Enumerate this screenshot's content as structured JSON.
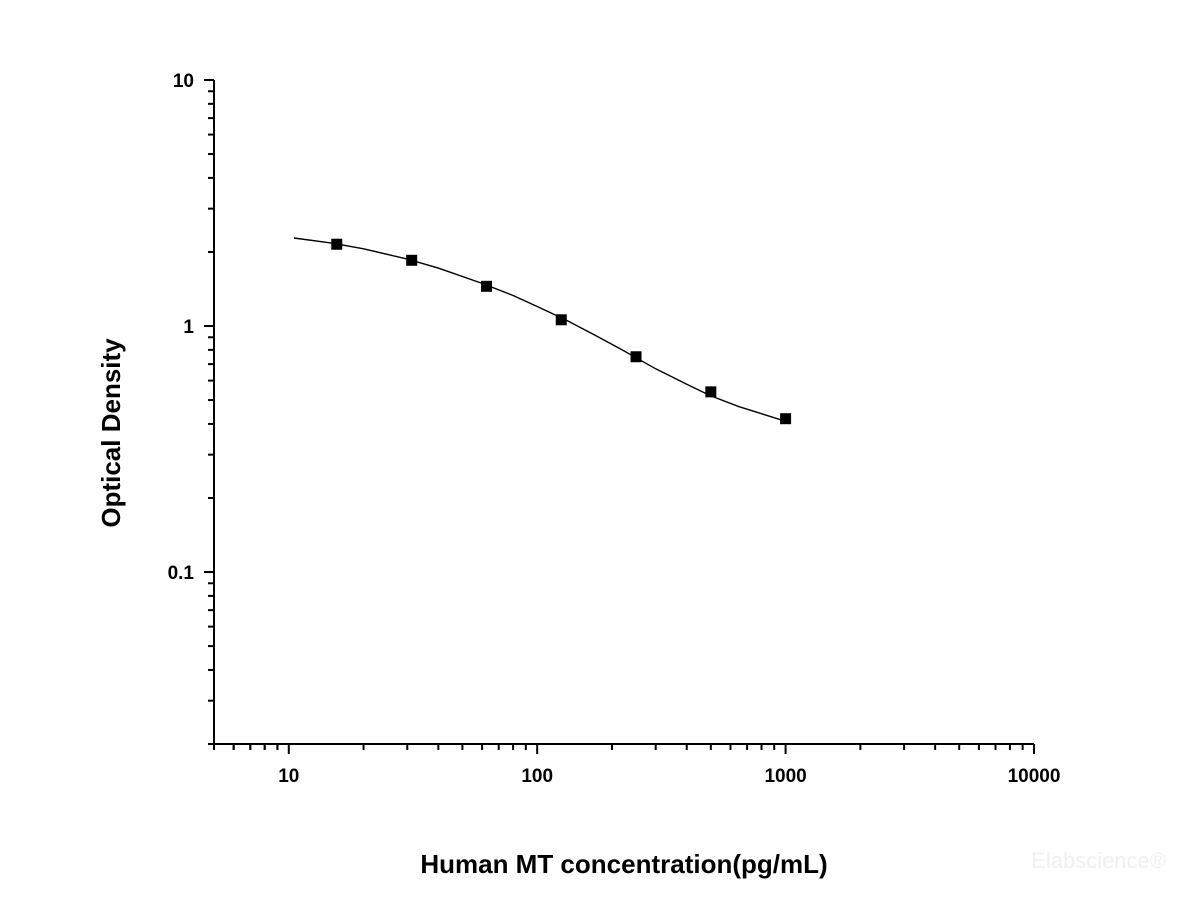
{
  "chart_data": {
    "type": "scatter",
    "title": "",
    "xlabel": "Human MT concentration(pg/mL)",
    "ylabel": "Optical Density",
    "x_scale": "log",
    "y_scale": "log",
    "xlim": [
      5,
      10000
    ],
    "ylim": [
      0.02,
      10
    ],
    "x_tick_labels": [
      "10",
      "100",
      "1000",
      "10000"
    ],
    "x_tick_values": [
      10,
      100,
      1000,
      10000
    ],
    "y_tick_labels": [
      "0.1",
      "1",
      "10"
    ],
    "y_tick_values": [
      0.1,
      1,
      10
    ],
    "grid": false,
    "marker": "square",
    "color": "#000000",
    "series": [
      {
        "x": [
          15.6,
          31.25,
          62.5,
          125,
          250,
          500,
          1000
        ],
        "y": [
          2.15,
          1.85,
          1.45,
          1.06,
          0.75,
          0.54,
          0.42
        ]
      }
    ],
    "fit_curve": {
      "x": [
        10.5,
        15,
        20,
        30,
        40,
        60,
        80,
        100,
        130,
        170,
        220,
        300,
        400,
        500,
        650,
        800,
        1000
      ],
      "y": [
        2.28,
        2.17,
        2.06,
        1.87,
        1.72,
        1.49,
        1.33,
        1.2,
        1.06,
        0.92,
        0.8,
        0.67,
        0.58,
        0.52,
        0.47,
        0.44,
        0.41
      ]
    }
  },
  "watermark": "Elabscience®"
}
